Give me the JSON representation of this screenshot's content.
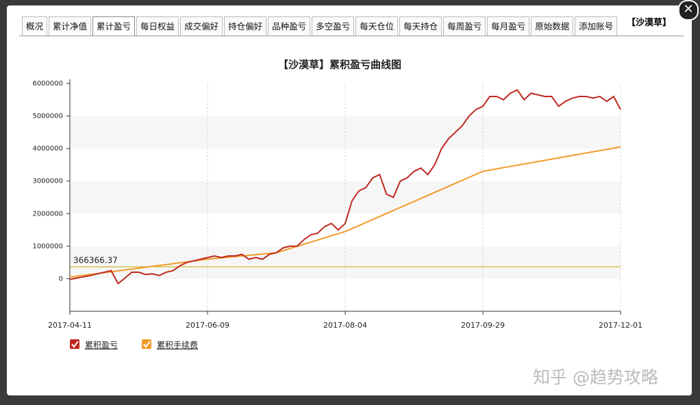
{
  "header": {
    "tabs": [
      "概况",
      "累计净值",
      "累计盈亏",
      "每日权益",
      "成交偏好",
      "持仓偏好",
      "品种盈亏",
      "多空盈亏",
      "每天仓位",
      "每天持仓",
      "每周盈亏",
      "每月盈亏",
      "原始数据",
      "添加账号"
    ],
    "active_tab": 2,
    "account": "【沙漠草】"
  },
  "watermark": "知乎 @趋势攻略",
  "chart_data": {
    "type": "line",
    "title": "【沙漠草】累积盈亏曲线图",
    "categories": [
      "2017-04-11",
      null,
      null,
      null,
      null,
      null,
      null,
      null,
      null,
      null,
      null,
      null,
      null,
      null,
      null,
      null,
      null,
      null,
      null,
      null,
      "2017-06-09",
      null,
      null,
      null,
      null,
      null,
      null,
      null,
      null,
      null,
      null,
      null,
      null,
      null,
      null,
      null,
      null,
      null,
      null,
      null,
      "2017-08-04",
      null,
      null,
      null,
      null,
      null,
      null,
      null,
      null,
      null,
      null,
      null,
      null,
      null,
      null,
      null,
      null,
      null,
      null,
      null,
      "2017-09-29",
      null,
      null,
      null,
      null,
      null,
      null,
      null,
      null,
      null,
      null,
      null,
      null,
      null,
      null,
      null,
      null,
      null,
      null,
      null,
      "2017-12-01"
    ],
    "series": [
      {
        "name": "累积盈亏",
        "color": "#c0281f",
        "values": [
          -20000,
          20000,
          60000,
          100000,
          150000,
          200000,
          250000,
          -150000,
          20000,
          200000,
          200000,
          130000,
          150000,
          100000,
          200000,
          250000,
          400000,
          500000,
          550000,
          600000,
          650000,
          700000,
          650000,
          700000,
          700000,
          750000,
          600000,
          650000,
          600000,
          750000,
          800000,
          950000,
          1000000,
          1000000,
          1200000,
          1350000,
          1400000,
          1600000,
          1700000,
          1500000,
          1700000,
          2400000,
          2700000,
          2800000,
          3100000,
          3200000,
          2600000,
          2500000,
          3000000,
          3100000,
          3300000,
          3400000,
          3200000,
          3500000,
          4000000,
          4300000,
          4500000,
          4700000,
          5000000,
          5200000,
          5300000,
          5600000,
          5600000,
          5500000,
          5700000,
          5800000,
          5500000,
          5700000,
          5650000,
          5600000,
          5600000,
          5300000,
          5450000,
          5550000,
          5600000,
          5600000,
          5550000,
          5600000,
          5450000,
          5600000,
          5200000
        ]
      },
      {
        "name": "累积手续费",
        "color": "#f29a28",
        "values": [
          50000,
          78000,
          105000,
          133000,
          160000,
          188000,
          215000,
          243000,
          270000,
          298000,
          325000,
          353000,
          380000,
          408000,
          435000,
          463000,
          490000,
          518000,
          545000,
          573000,
          600000,
          620000,
          640000,
          660000,
          680000,
          700000,
          720000,
          740000,
          760000,
          780000,
          800000,
          865000,
          930000,
          995000,
          1060000,
          1125000,
          1190000,
          1255000,
          1320000,
          1385000,
          1450000,
          1543000,
          1635000,
          1728000,
          1820000,
          1913000,
          2005000,
          2098000,
          2190000,
          2283000,
          2375000,
          2468000,
          2560000,
          2653000,
          2745000,
          2838000,
          2930000,
          3023000,
          3115000,
          3208000,
          3300000,
          3338000,
          3375000,
          3413000,
          3450000,
          3488000,
          3525000,
          3563000,
          3600000,
          3638000,
          3675000,
          3713000,
          3750000,
          3788000,
          3825000,
          3863000,
          3900000,
          3938000,
          3975000,
          4013000,
          4050000
        ]
      }
    ],
    "reference_line": {
      "value": 366366.37,
      "color": "#c8a800"
    },
    "ylim": [
      -1000000,
      6000000
    ],
    "yticks": [
      0,
      1000000,
      2000000,
      3000000,
      4000000,
      5000000,
      6000000
    ],
    "grid": true
  }
}
